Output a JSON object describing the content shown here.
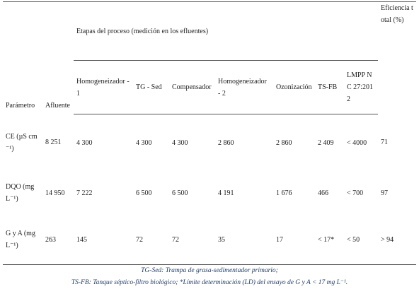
{
  "table": {
    "header": {
      "parameter": "Parámetro",
      "influent": "Afluente",
      "stages": "Etapas del proceso (medición en los efluentes)",
      "efficiency": "Eficiencia total (%)",
      "stage_columns": [
        "Homogeneizador -1",
        "TG - Sed",
        "Compensador",
        "Homogeneizador - 2",
        "Ozonización",
        "TS-FB",
        "LMPP NC 27:2012"
      ]
    },
    "rows": [
      [
        "CE (µS cm⁻¹)",
        "8 251",
        "4 300",
        "4 300",
        "4 300",
        "2 860",
        "2 860",
        "2 409",
        "< 4000",
        "71"
      ],
      [
        "DQO (mg L⁻¹)",
        "14 950",
        "7 222",
        "6 500",
        "6 500",
        "4 191",
        "1 676",
        "466",
        "< 700",
        "97"
      ],
      [
        "G y A (mg L⁻¹)",
        "263",
        "145",
        "72",
        "72",
        "35",
        "17",
        "< 17*",
        "< 50",
        "> 94"
      ]
    ],
    "footnotes": [
      "TG-Sed: Trampa de grasa-sedimentador primario;",
      "TS-FB: Tanque séptico-filtro biológico; *Límite determinación (LD) del ensayo de G y A < 17 mg L⁻¹."
    ]
  }
}
